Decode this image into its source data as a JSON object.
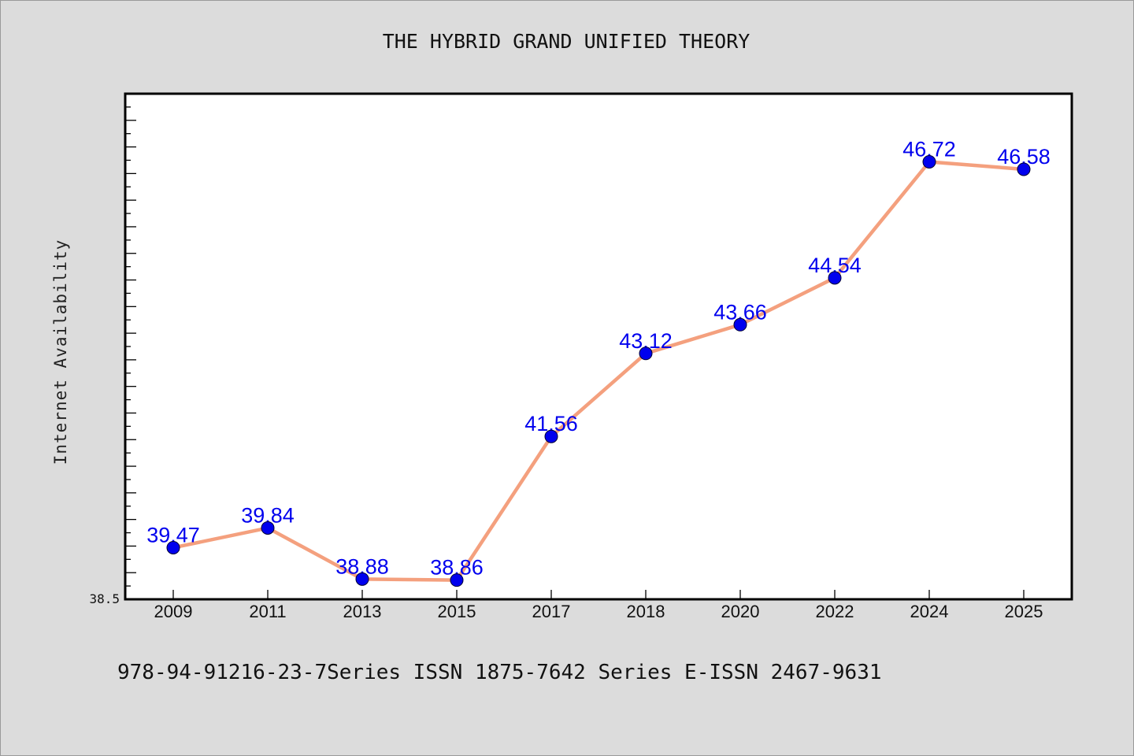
{
  "chart_data": {
    "type": "line",
    "title": "THE HYBRID GRAND UNIFIED THEORY",
    "xlabel": "",
    "ylabel": "Internet Availability",
    "categories": [
      "2009",
      "2011",
      "2013",
      "2015",
      "2017",
      "2018",
      "2020",
      "2022",
      "2024",
      "2025"
    ],
    "series": [
      {
        "values": [
          39.47,
          39.84,
          38.88,
          38.86,
          41.56,
          43.12,
          43.66,
          44.54,
          46.72,
          46.58
        ],
        "labels": [
          "39.47",
          "39.84",
          "38.88",
          "38.86",
          "41.56",
          "43.12",
          "43.66",
          "44.54",
          "46.72",
          "46.58"
        ]
      }
    ],
    "y_tick_labels": [
      "38.5"
    ],
    "ylim": [
      38.5,
      48.0
    ],
    "grid": false,
    "legend": "none",
    "colors": {
      "line": "#f4a07e",
      "marker": "#0000ee",
      "value_label": "#0000ee",
      "axes": "#000000",
      "plot_background": "#ffffff",
      "page_background": "#dcdcdc"
    }
  },
  "footer": {
    "text": "978-94-91216-23-7Series ISSN 1875-7642 Series E-ISSN 2467-9631"
  }
}
